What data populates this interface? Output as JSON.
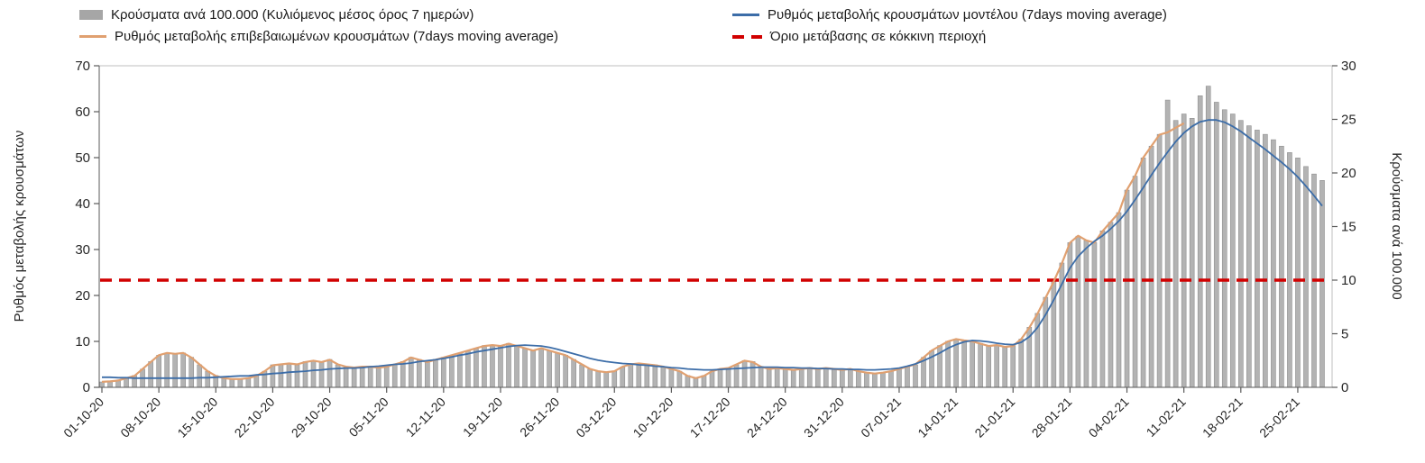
{
  "legend": {
    "items": [
      {
        "label": "Κρούσματα ανά 100.000 (Κυλιόμενος μέσος όρος 7 ημερών)",
        "type": "bar",
        "color": "#a6a6a6"
      },
      {
        "label": "Ρυθμός μεταβολής κρουσμάτων μοντέλου (7days moving average)",
        "type": "line",
        "color": "#3c6da8"
      },
      {
        "label": "Ρυθμός μεταβολής επιβεβαιωμένων κρουσμάτων (7days moving average)",
        "type": "line",
        "color": "#e0a070"
      },
      {
        "label": "Όριο μετάβασης σε κόκκινη περιοχή",
        "type": "dashed-line",
        "color": "#d10000"
      }
    ]
  },
  "chart_data": {
    "type": "bar+line",
    "x_tick_labels": [
      "01-10-20",
      "08-10-20",
      "15-10-20",
      "22-10-20",
      "29-10-20",
      "05-11-20",
      "12-11-20",
      "19-11-20",
      "26-11-20",
      "03-12-20",
      "10-12-20",
      "17-12-20",
      "24-12-20",
      "31-12-20",
      "07-01-21",
      "14-01-21",
      "21-01-21",
      "28-01-21",
      "04-02-21",
      "11-02-21",
      "18-02-21",
      "25-02-21"
    ],
    "x_days_per_tick": 7,
    "left_axis": {
      "label": "Ρυθμός μεταβολής κρουσμάτων",
      "ticks": [
        0,
        10,
        20,
        30,
        40,
        50,
        60,
        70
      ],
      "range": [
        0,
        70
      ]
    },
    "right_axis": {
      "label": "Κρούσματα ανά 100.000",
      "ticks": [
        0,
        5,
        10,
        15,
        20,
        25,
        30
      ],
      "range": [
        0,
        30
      ]
    },
    "series": [
      {
        "name": "Κρούσματα ανά 100.000 (Κυλιόμενος μέσος όρος 7 ημερών)",
        "type": "bar",
        "axis": "right",
        "color": "#b3b3b3",
        "border_color": "#8f8f8f",
        "values": [
          0.5,
          0.6,
          0.6,
          0.9,
          1.1,
          1.7,
          2.4,
          3.0,
          3.2,
          3.1,
          3.2,
          2.8,
          2.1,
          1.5,
          1.1,
          0.9,
          0.8,
          0.8,
          0.9,
          1.1,
          1.5,
          2.1,
          2.1,
          2.2,
          2.1,
          2.4,
          2.5,
          2.4,
          2.6,
          2.1,
          1.9,
          1.8,
          1.9,
          1.9,
          1.8,
          1.9,
          2.1,
          2.4,
          2.8,
          2.6,
          2.4,
          2.6,
          2.8,
          3.0,
          3.2,
          3.4,
          3.6,
          3.9,
          3.9,
          3.9,
          4.1,
          3.9,
          3.6,
          3.4,
          3.6,
          3.4,
          3.2,
          3.0,
          2.6,
          2.1,
          1.7,
          1.5,
          1.4,
          1.5,
          1.9,
          2.1,
          2.2,
          2.1,
          2.1,
          1.9,
          1.7,
          1.5,
          1.1,
          0.9,
          1.1,
          1.5,
          1.7,
          1.8,
          2.1,
          2.5,
          2.4,
          1.9,
          1.7,
          1.8,
          1.7,
          1.6,
          1.7,
          1.8,
          1.7,
          1.8,
          1.7,
          1.6,
          1.7,
          1.5,
          1.4,
          1.3,
          1.4,
          1.5,
          1.7,
          1.9,
          2.1,
          2.8,
          3.4,
          3.9,
          4.3,
          4.5,
          4.4,
          4.3,
          4.1,
          3.9,
          3.9,
          3.8,
          3.9,
          4.5,
          5.6,
          6.9,
          8.4,
          9.9,
          11.6,
          13.5,
          14.1,
          13.7,
          13.5,
          14.6,
          15.4,
          16.3,
          18.4,
          19.7,
          21.4,
          22.5,
          23.6,
          26.8,
          24.9,
          25.5,
          25.1,
          27.2,
          28.1,
          26.6,
          25.9,
          25.5,
          24.9,
          24.4,
          24.0,
          23.6,
          23.1,
          22.5,
          21.9,
          21.4,
          20.6,
          19.9,
          19.3
        ]
      },
      {
        "name": "Ρυθμός μεταβολής κρουσμάτων μοντέλου (7days moving average)",
        "type": "line",
        "axis": "left",
        "color": "#3c6da8",
        "values": [
          2.2,
          2.2,
          2.1,
          2.1,
          2.0,
          2.0,
          2.0,
          2.0,
          2.0,
          2.0,
          2.0,
          2.0,
          2.1,
          2.1,
          2.2,
          2.3,
          2.4,
          2.5,
          2.5,
          2.7,
          2.8,
          3.0,
          3.1,
          3.3,
          3.4,
          3.5,
          3.7,
          3.8,
          4.0,
          4.1,
          4.2,
          4.2,
          4.3,
          4.5,
          4.6,
          4.8,
          5.0,
          5.1,
          5.3,
          5.6,
          5.8,
          6.0,
          6.3,
          6.6,
          7.0,
          7.3,
          7.7,
          8.0,
          8.3,
          8.6,
          8.9,
          9.1,
          9.2,
          9.1,
          9.0,
          8.7,
          8.3,
          7.8,
          7.3,
          6.8,
          6.3,
          5.9,
          5.6,
          5.4,
          5.2,
          5.1,
          4.9,
          4.8,
          4.6,
          4.5,
          4.3,
          4.2,
          4.0,
          3.9,
          3.8,
          3.8,
          3.9,
          4.0,
          4.1,
          4.2,
          4.3,
          4.4,
          4.4,
          4.4,
          4.3,
          4.3,
          4.2,
          4.2,
          4.1,
          4.1,
          4.0,
          4.0,
          3.9,
          3.9,
          3.8,
          3.8,
          3.9,
          4.0,
          4.2,
          4.6,
          5.1,
          5.8,
          6.6,
          7.5,
          8.5,
          9.3,
          9.9,
          10.2,
          10.1,
          9.9,
          9.6,
          9.4,
          9.3,
          9.8,
          11.0,
          13.0,
          15.8,
          19.0,
          22.5,
          26.0,
          28.5,
          30.3,
          31.8,
          33.0,
          34.5,
          36.2,
          38.3,
          40.8,
          43.5,
          46.2,
          48.8,
          51.2,
          53.5,
          55.4,
          56.8,
          57.8,
          58.2,
          58.2,
          57.7,
          56.8,
          55.7,
          54.4,
          53.1,
          51.8,
          50.4,
          49.0,
          47.5,
          45.8,
          43.8,
          41.7,
          39.5
        ]
      },
      {
        "name": "Ρυθμός μεταβολής επιβεβαιωμένων κρουσμάτων (7days moving average)",
        "type": "line",
        "axis": "left",
        "color": "#e0a070",
        "values": [
          1.2,
          1.3,
          1.5,
          2.0,
          2.5,
          4.0,
          5.5,
          7.0,
          7.5,
          7.3,
          7.5,
          6.5,
          5.0,
          3.5,
          2.5,
          2.0,
          1.8,
          1.8,
          2.0,
          2.5,
          3.5,
          4.8,
          5.0,
          5.2,
          5.0,
          5.5,
          5.8,
          5.5,
          6.0,
          5.0,
          4.5,
          4.3,
          4.5,
          4.5,
          4.3,
          4.5,
          5.0,
          5.5,
          6.5,
          6.0,
          5.5,
          6.0,
          6.5,
          7.0,
          7.5,
          8.0,
          8.5,
          9.0,
          9.2,
          9.0,
          9.5,
          9.0,
          8.5,
          8.0,
          8.5,
          8.0,
          7.5,
          7.0,
          6.0,
          5.0,
          4.0,
          3.5,
          3.3,
          3.5,
          4.5,
          5.0,
          5.2,
          5.0,
          4.8,
          4.5,
          4.0,
          3.5,
          2.5,
          2.0,
          2.5,
          3.5,
          4.0,
          4.2,
          5.0,
          5.8,
          5.5,
          4.5,
          4.0,
          4.2,
          4.0,
          3.8,
          4.0,
          4.2,
          4.0,
          4.2,
          4.0,
          3.8,
          4.0,
          3.5,
          3.2,
          3.0,
          3.2,
          3.5,
          4.0,
          4.5,
          5.0,
          6.5,
          8.0,
          9.0,
          10.0,
          10.5,
          10.2,
          10.0,
          9.5,
          9.0,
          9.2,
          8.8,
          9.0,
          10.5,
          13.0,
          16.0,
          19.5,
          23.0,
          27.0,
          31.5,
          33.0,
          32.0,
          31.5,
          34.0,
          36.0,
          38.0,
          43.0,
          46.0,
          50.0,
          52.5,
          55.0,
          55.5,
          56.5,
          57.5
        ]
      }
    ],
    "threshold_line": {
      "name": "Όριο μετάβασης σε κόκκινη περιοχή",
      "axis": "right",
      "value": 10,
      "color": "#d10000",
      "style": "dashed"
    }
  }
}
